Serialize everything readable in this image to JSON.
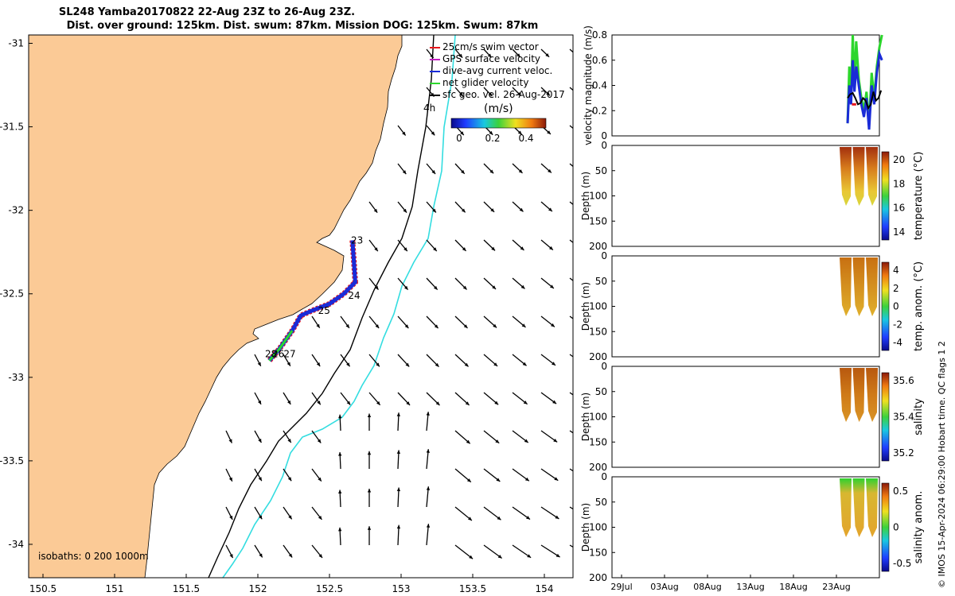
{
  "title": {
    "line1": "SL248 Yamba20170822 22-Aug 23Z to 26-Aug 23Z.",
    "line2": "Dist. over ground: 125km. Dist. swum: 87km. Mission DOG: 125km. Swum: 87km"
  },
  "footer": "© IMOS 15-Apr-2024 06:29:00 Hobart time. QC flags 1  2",
  "colors": {
    "land": "#fbca96",
    "swim": "#e8161c",
    "gps": "#c020c0",
    "dive_avg": "#1a2bd8",
    "net_glider": "#2cd62c",
    "isobath_200": "#000000",
    "isobath_1000": "#33dde0"
  },
  "chart_data": [
    {
      "type": "map",
      "x_ticks": [
        "150.5",
        "151",
        "151.5",
        "152",
        "152.5",
        "153",
        "153.5",
        "154"
      ],
      "y_ticks": [
        "-31",
        "-31.5",
        "-32",
        "-32.5",
        "-33",
        "-33.5",
        "-34"
      ],
      "xlim": [
        150.4,
        154.2
      ],
      "ylim": [
        -34.2,
        -30.95
      ],
      "legend": {
        "placement": "top-right",
        "entries": [
          {
            "label": "25cm/s swim vector",
            "color": "swim"
          },
          {
            "label": "GPS surface velocity",
            "color": "gps"
          },
          {
            "label": "dive-avg current veloc.",
            "color": "dive_avg"
          },
          {
            "label": "net glider velocity",
            "color": "net_glider"
          },
          {
            "label": "sfc geo. vel. 26-Aug-2017",
            "color": "#000000"
          }
        ]
      },
      "legend_note": "4h",
      "colorbar": {
        "label": "(m/s)",
        "ticks": [
          "0",
          "0.2",
          "0.4"
        ]
      },
      "isobath_text": "isobaths: 0   200  1000m",
      "track_labels": [
        {
          "text": "23",
          "lon": 152.65,
          "lat": -32.2
        },
        {
          "text": "24",
          "lon": 152.63,
          "lat": -32.53
        },
        {
          "text": "25",
          "lon": 152.42,
          "lat": -32.62
        },
        {
          "text": "28",
          "lon": 152.05,
          "lat": -32.88
        },
        {
          "text": "26",
          "lon": 152.1,
          "lat": -32.88
        },
        {
          "text": "27",
          "lon": 152.18,
          "lat": -32.88
        }
      ],
      "glider_track": [
        [
          152.66,
          -32.18
        ],
        [
          152.67,
          -32.3
        ],
        [
          152.68,
          -32.43
        ],
        [
          152.6,
          -32.5
        ],
        [
          152.5,
          -32.56
        ],
        [
          152.38,
          -32.6
        ],
        [
          152.3,
          -32.63
        ],
        [
          152.24,
          -32.72
        ],
        [
          152.15,
          -32.83
        ],
        [
          152.08,
          -32.9
        ]
      ]
    },
    {
      "type": "line",
      "ylabel": "velocity magnitude (m/s)",
      "ylim": [
        0,
        0.8
      ],
      "y_ticks": [
        "0",
        "0.2",
        "0.4",
        "0.6",
        "0.8"
      ],
      "series": [
        {
          "color": "net_glider",
          "x": [
            23.0,
            23.2,
            23.4,
            23.6,
            23.8,
            24.0,
            24.3,
            24.6,
            24.9,
            25.2,
            25.5,
            25.8,
            26.1,
            26.4,
            26.7,
            27.0
          ],
          "values": [
            0.1,
            0.55,
            0.3,
            0.8,
            0.4,
            0.75,
            0.45,
            0.3,
            0.2,
            0.35,
            0.1,
            0.5,
            0.3,
            0.55,
            0.7,
            0.8
          ]
        },
        {
          "color": "dive_avg",
          "x": [
            23.0,
            23.2,
            23.4,
            23.6,
            23.8,
            24.0,
            24.3,
            24.6,
            24.9,
            25.2,
            25.5,
            25.8,
            26.1,
            26.4,
            26.7,
            27.0
          ],
          "values": [
            0.1,
            0.4,
            0.25,
            0.6,
            0.35,
            0.55,
            0.4,
            0.25,
            0.15,
            0.3,
            0.05,
            0.4,
            0.25,
            0.5,
            0.65,
            0.6
          ]
        },
        {
          "color": "#000000",
          "x": [
            23.0,
            23.3,
            23.6,
            23.9,
            24.2,
            24.5,
            24.8,
            25.1,
            25.4,
            25.7,
            26.0,
            26.3,
            26.6,
            26.9
          ],
          "values": [
            0.3,
            0.33,
            0.34,
            0.3,
            0.25,
            0.26,
            0.3,
            0.28,
            0.22,
            0.25,
            0.35,
            0.28,
            0.3,
            0.36
          ]
        },
        {
          "color": "swim",
          "x": [
            23.5,
            24.0
          ],
          "values": [
            0.25,
            0.25
          ]
        }
      ]
    },
    {
      "type": "heatmap",
      "ylabel": "Depth (m)",
      "clabel": "temperature (°C)",
      "y_ticks": [
        "0",
        "50",
        "100",
        "150",
        "200"
      ],
      "c_ticks": [
        "20",
        "18",
        "16",
        "14"
      ]
    },
    {
      "type": "heatmap",
      "ylabel": "Depth (m)",
      "clabel": "temp. anom. (°C)",
      "y_ticks": [
        "0",
        "50",
        "100",
        "150",
        "200"
      ],
      "c_ticks": [
        "4",
        "2",
        "0",
        "-2",
        "-4"
      ]
    },
    {
      "type": "heatmap",
      "ylabel": "Depth (m)",
      "clabel": "salinity",
      "y_ticks": [
        "0",
        "50",
        "100",
        "150",
        "200"
      ],
      "c_ticks": [
        "35.6",
        "35.4",
        "35.2"
      ]
    },
    {
      "type": "heatmap",
      "ylabel": "Depth (m)",
      "clabel": "salinity anom.",
      "y_ticks": [
        "0",
        "50",
        "100",
        "150",
        "200"
      ],
      "c_ticks": [
        "0.5",
        "0",
        "-0.5"
      ],
      "x_ticks": [
        "29Jul",
        "03Aug",
        "08Aug",
        "13Aug",
        "18Aug",
        "23Aug"
      ]
    }
  ]
}
